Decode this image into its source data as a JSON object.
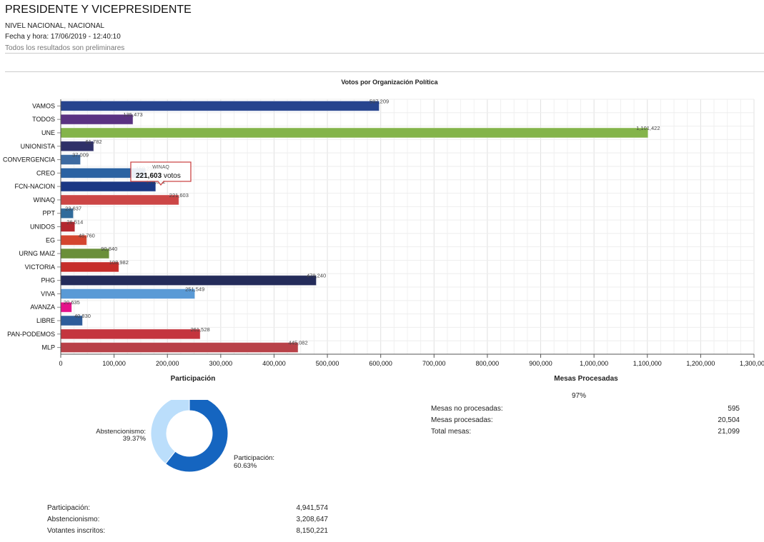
{
  "header": {
    "title": "PRESIDENTE Y VICEPRESIDENTE",
    "level": "NIVEL NACIONAL, NACIONAL",
    "datetime": "Fecha y hora: 17/06/2019 - 12:40:10",
    "note": "Todos los resultados son preliminares"
  },
  "chart_data": [
    {
      "type": "bar",
      "orientation": "horizontal",
      "title": "Votos por Organización Política",
      "xlim": [
        0,
        1300000
      ],
      "grid": true,
      "xticks": [
        "0",
        "100,000",
        "200,000",
        "300,000",
        "400,000",
        "500,000",
        "600,000",
        "700,000",
        "800,000",
        "900,000",
        "1,000,000",
        "1,100,000",
        "1,200,000",
        "1,300,000"
      ],
      "categories": [
        "VAMOS",
        "TODOS",
        "UNE",
        "UNIONISTA",
        "CONVERGENCIA",
        "CREO",
        "FCN-NACION",
        "WINAQ",
        "PPT",
        "UNIDOS",
        "EG",
        "URNG MAIZ",
        "VICTORIA",
        "PHG",
        "VIVA",
        "AVANZA",
        "LIBRE",
        "PAN-PODEMOS",
        "MLP"
      ],
      "values": [
        597209,
        135473,
        1101422,
        61782,
        37009,
        159234,
        178092,
        221603,
        23637,
        26514,
        48760,
        90840,
        108982,
        479240,
        251549,
        20635,
        40830,
        261528,
        445082
      ],
      "labels": [
        "597,209",
        "135,473",
        "1,101,422",
        "61,782",
        "37,009",
        "159,234",
        "178,092",
        "221,603",
        "23,637",
        "26,514",
        "48,760",
        "90,840",
        "108,982",
        "479,240",
        "251,549",
        "20,635",
        "40,830",
        "261,528",
        "445,082"
      ],
      "colors": [
        "#27448e",
        "#5a3282",
        "#84b44a",
        "#2f3068",
        "#3d6aa1",
        "#2a62a2",
        "#1b3884",
        "#cc4646",
        "#316b9b",
        "#b4272f",
        "#d4452f",
        "#6a8f3a",
        "#c62d2a",
        "#242c5a",
        "#5a9ad6",
        "#e6118a",
        "#2e5d9a",
        "#c4353e",
        "#b84148"
      ],
      "tooltip": {
        "title": "WINAQ",
        "value": "221,603",
        "unit": "votos"
      }
    },
    {
      "type": "pie",
      "donut": true,
      "title": "Participación",
      "categories": [
        "Participación",
        "Abstencionismo"
      ],
      "values": [
        60.63,
        39.37
      ],
      "labels": [
        "Participación:",
        "Abstencionismo:"
      ],
      "pct_labels": [
        "60.63%",
        "39.37%"
      ],
      "colors": [
        "#1565c0",
        "#bbdefb"
      ]
    }
  ],
  "participation_stats": [
    {
      "label": "Participación:",
      "value": "4,941,574"
    },
    {
      "label": "Abstencionismo:",
      "value": "3,208,647"
    },
    {
      "label": "Votantes inscritos:",
      "value": "8,150,221"
    }
  ],
  "mesas": {
    "title": "Mesas Procesadas",
    "percent": "97%",
    "rows": [
      {
        "label": "Mesas no procesadas:",
        "value": "595"
      },
      {
        "label": "Mesas procesadas:",
        "value": "20,504"
      },
      {
        "label": "Total mesas:",
        "value": "21,099"
      }
    ]
  }
}
